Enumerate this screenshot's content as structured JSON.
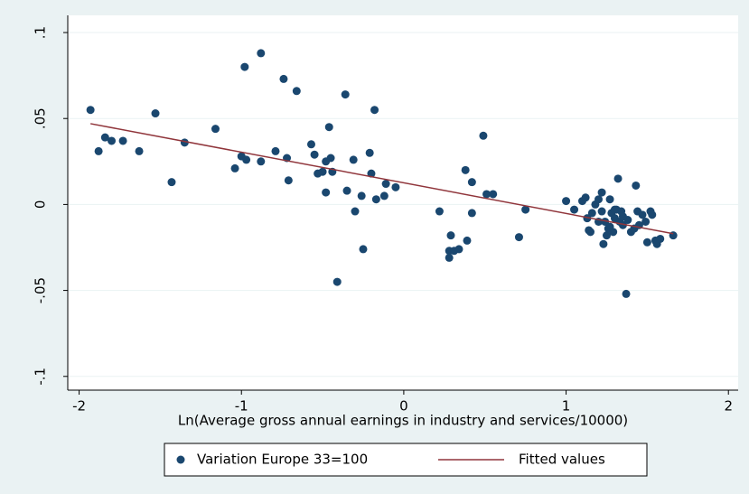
{
  "chart_data": {
    "type": "scatter",
    "xlabel": "Ln(Average gross annual earnings in industry and services/10000)",
    "xlim": [
      -2.07,
      2.06
    ],
    "ylim": [
      -0.108,
      0.11
    ],
    "xticks": [
      -2,
      -1,
      0,
      1,
      2
    ],
    "yticks": [
      {
        "value": 0.1,
        "label": ".1"
      },
      {
        "value": 0.05,
        "label": ".05"
      },
      {
        "value": 0,
        "label": "0"
      },
      {
        "value": -0.05,
        "label": "-.05"
      },
      {
        "value": -0.1,
        "label": "-.1"
      }
    ],
    "grid": true,
    "legend": "bottom",
    "series": [
      {
        "name": "Variation Europe 33=100",
        "color": "#1a476f",
        "type": "scatter",
        "x": [
          -1.93,
          -1.88,
          -1.84,
          -1.8,
          -1.73,
          -1.63,
          -1.53,
          -1.43,
          -1.35,
          -1.16,
          -1.04,
          -1.0,
          -0.98,
          -0.97,
          -0.88,
          -0.88,
          -0.79,
          -0.74,
          -0.72,
          -0.71,
          -0.66,
          -0.57,
          -0.55,
          -0.53,
          -0.5,
          -0.48,
          -0.48,
          -0.46,
          -0.45,
          -0.44,
          -0.41,
          -0.36,
          -0.35,
          -0.31,
          -0.3,
          -0.26,
          -0.25,
          -0.21,
          -0.2,
          -0.18,
          -0.17,
          -0.12,
          -0.11,
          -0.05,
          0.22,
          0.28,
          0.28,
          0.29,
          0.31,
          0.34,
          0.38,
          0.39,
          0.42,
          0.42,
          0.49,
          0.51,
          0.55,
          0.71,
          0.75,
          1.0,
          1.05,
          1.1,
          1.12,
          1.13,
          1.14,
          1.15,
          1.16,
          1.18,
          1.2,
          1.2,
          1.22,
          1.22,
          1.23,
          1.24,
          1.25,
          1.26,
          1.27,
          1.28,
          1.29,
          1.3,
          1.31,
          1.32,
          1.33,
          1.34,
          1.35,
          1.37,
          1.38,
          1.4,
          1.42,
          1.43,
          1.44,
          1.45,
          1.47,
          1.49,
          1.5,
          1.52,
          1.53,
          1.55,
          1.56,
          1.58,
          1.66,
          1.3,
          1.35,
          1.27
        ],
        "values": [
          0.055,
          0.031,
          0.039,
          0.037,
          0.037,
          0.031,
          0.053,
          0.013,
          0.036,
          0.044,
          0.021,
          0.028,
          0.08,
          0.026,
          0.088,
          0.025,
          0.031,
          0.073,
          0.027,
          0.014,
          0.066,
          0.035,
          0.029,
          0.018,
          0.019,
          0.025,
          0.007,
          0.045,
          0.027,
          0.019,
          -0.045,
          0.064,
          0.008,
          0.026,
          -0.004,
          0.005,
          -0.026,
          0.03,
          0.018,
          0.055,
          0.003,
          0.005,
          0.012,
          0.01,
          -0.004,
          -0.027,
          -0.031,
          -0.018,
          -0.027,
          -0.026,
          0.02,
          -0.021,
          0.013,
          -0.005,
          0.04,
          0.006,
          0.006,
          -0.019,
          -0.003,
          0.002,
          -0.003,
          0.002,
          0.004,
          -0.008,
          -0.015,
          -0.016,
          -0.005,
          0.0,
          0.003,
          -0.01,
          -0.004,
          0.007,
          -0.023,
          -0.01,
          -0.018,
          -0.014,
          0.003,
          -0.005,
          -0.016,
          -0.008,
          -0.003,
          0.015,
          -0.01,
          -0.004,
          -0.012,
          -0.052,
          -0.009,
          -0.016,
          -0.014,
          0.011,
          -0.004,
          -0.012,
          -0.006,
          -0.01,
          -0.022,
          -0.004,
          -0.006,
          -0.021,
          -0.023,
          -0.02,
          -0.018,
          -0.003,
          -0.007,
          -0.013
        ]
      },
      {
        "name": "Fitted values",
        "color": "#90353b",
        "type": "line",
        "x": [
          -1.93,
          1.66
        ],
        "values": [
          0.047,
          -0.017
        ]
      }
    ]
  }
}
